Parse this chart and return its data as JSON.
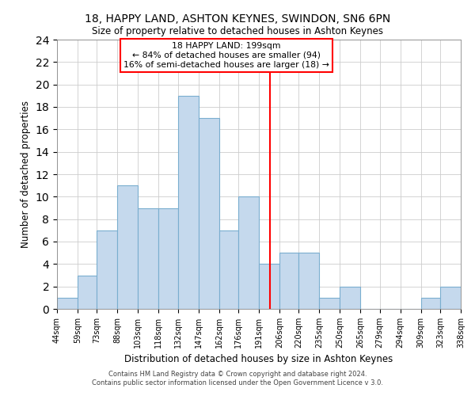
{
  "title": "18, HAPPY LAND, ASHTON KEYNES, SWINDON, SN6 6PN",
  "subtitle": "Size of property relative to detached houses in Ashton Keynes",
  "xlabel": "Distribution of detached houses by size in Ashton Keynes",
  "ylabel": "Number of detached properties",
  "footer1": "Contains HM Land Registry data © Crown copyright and database right 2024.",
  "footer2": "Contains public sector information licensed under the Open Government Licence v 3.0.",
  "bins": [
    44,
    59,
    73,
    88,
    103,
    118,
    132,
    147,
    162,
    176,
    191,
    206,
    220,
    235,
    250,
    265,
    279,
    294,
    309,
    323,
    338
  ],
  "counts": [
    1,
    3,
    7,
    11,
    9,
    9,
    19,
    17,
    7,
    10,
    4,
    5,
    5,
    1,
    2,
    0,
    0,
    0,
    1,
    2
  ],
  "bar_color": "#c5d9ed",
  "bar_edge_color": "#7aaecf",
  "vline_x": 199,
  "vline_color": "red",
  "annotation_line1": "18 HAPPY LAND: 199sqm",
  "annotation_line2": "← 84% of detached houses are smaller (94)",
  "annotation_line3": "16% of semi-detached houses are larger (18) →",
  "ylim": [
    0,
    24
  ],
  "tick_labels": [
    "44sqm",
    "59sqm",
    "73sqm",
    "88sqm",
    "103sqm",
    "118sqm",
    "132sqm",
    "147sqm",
    "162sqm",
    "176sqm",
    "191sqm",
    "206sqm",
    "220sqm",
    "235sqm",
    "250sqm",
    "265sqm",
    "279sqm",
    "294sqm",
    "309sqm",
    "323sqm",
    "338sqm"
  ],
  "background_color": "#ffffff",
  "grid_color": "#cccccc"
}
